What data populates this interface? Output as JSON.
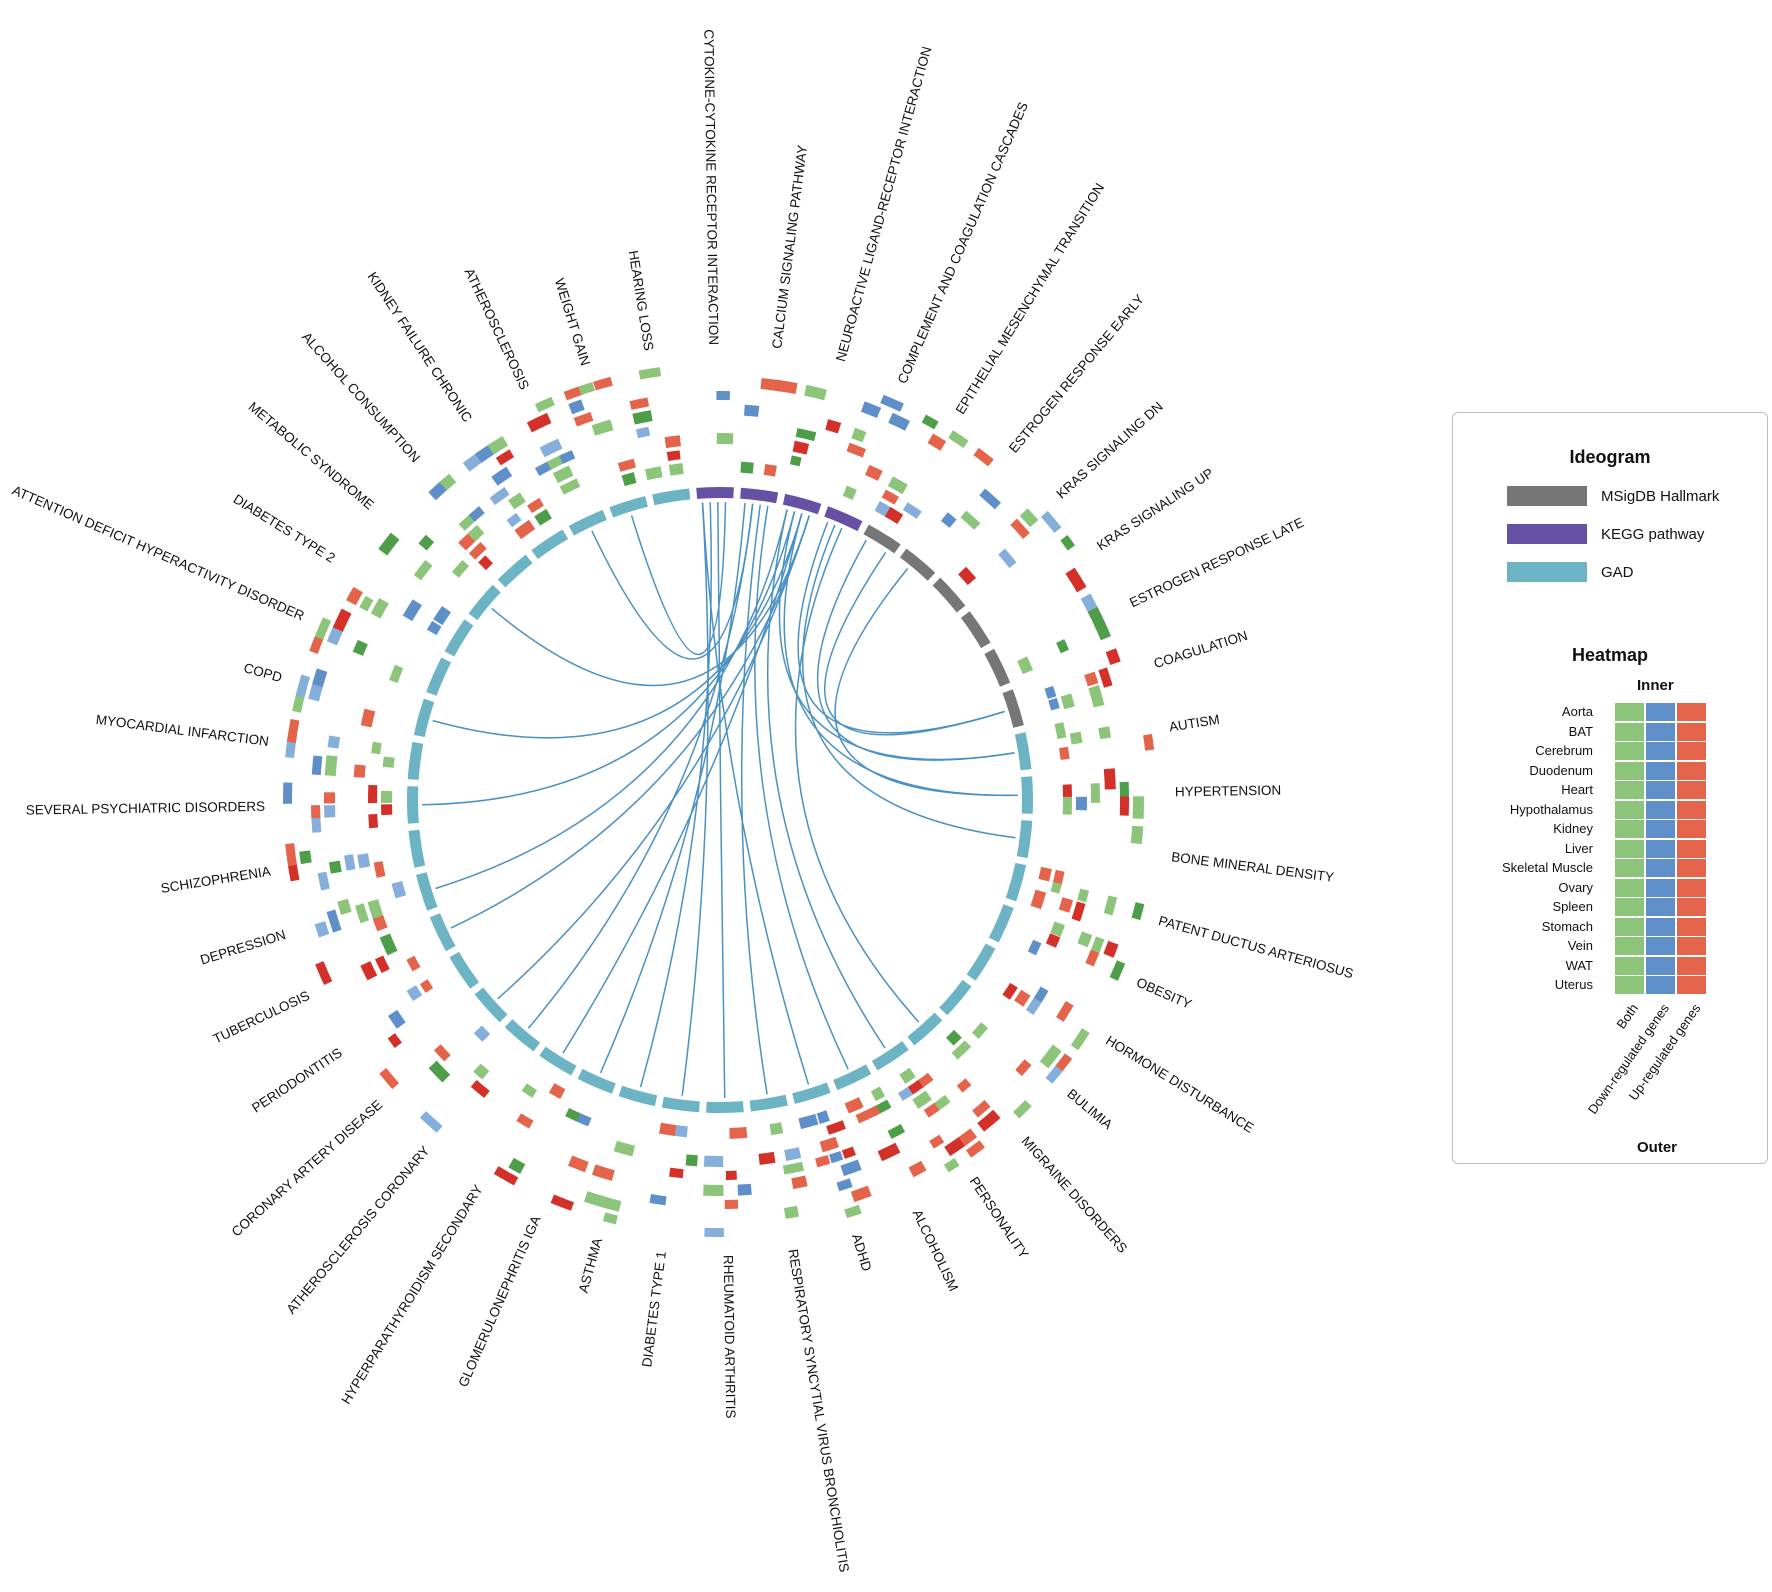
{
  "colors": {
    "msigdb": "#767676",
    "kegg": "#6650a4",
    "gad": "#6cb4c3",
    "link": "#4a90c2",
    "both": "#8cc47a",
    "both_dark": "#4e9d48",
    "down": "#5f8fc9",
    "down_light": "#86aedb",
    "up": "#e4634b",
    "up_dark": "#d4302a"
  },
  "segments": [
    {
      "label": "CYTOKINE-CYTOKINE RECEPTOR INTERACTION",
      "group": "kegg"
    },
    {
      "label": "CALCIUM SIGNALING PATHWAY",
      "group": "kegg"
    },
    {
      "label": "NEUROACTIVE LIGAND-RECEPTOR INTERACTION",
      "group": "kegg"
    },
    {
      "label": "COMPLEMENT AND COAGULATION CASCADES",
      "group": "kegg"
    },
    {
      "label": "EPITHELIAL MESENCHYMAL TRANSITION",
      "group": "msigdb"
    },
    {
      "label": "ESTROGEN RESPONSE EARLY",
      "group": "msigdb"
    },
    {
      "label": "KRAS SIGNALING DN",
      "group": "msigdb"
    },
    {
      "label": "KRAS SIGNALING UP",
      "group": "msigdb"
    },
    {
      "label": "ESTROGEN RESPONSE LATE",
      "group": "msigdb"
    },
    {
      "label": "COAGULATION",
      "group": "msigdb"
    },
    {
      "label": "AUTISM",
      "group": "gad"
    },
    {
      "label": "HYPERTENSION",
      "group": "gad"
    },
    {
      "label": "BONE MINERAL DENSITY",
      "group": "gad"
    },
    {
      "label": "PATENT DUCTUS ARTERIOSUS",
      "group": "gad"
    },
    {
      "label": "OBESITY",
      "group": "gad"
    },
    {
      "label": "HORMONE DISTURBANCE",
      "group": "gad"
    },
    {
      "label": "BULIMIA",
      "group": "gad"
    },
    {
      "label": "MIGRAINE DISORDERS",
      "group": "gad"
    },
    {
      "label": "PERSONALITY",
      "group": "gad"
    },
    {
      "label": "ALCOHOLISM",
      "group": "gad"
    },
    {
      "label": "ADHD",
      "group": "gad"
    },
    {
      "label": "RESPIRATORY SYNCYTIAL VIRUS BRONCHIOLITIS",
      "group": "gad"
    },
    {
      "label": "RHEUMATOID ARTHRITIS",
      "group": "gad"
    },
    {
      "label": "DIABETES TYPE 1",
      "group": "gad"
    },
    {
      "label": "ASTHMA",
      "group": "gad"
    },
    {
      "label": "GLOMERULONEPHRITIS IGA",
      "group": "gad"
    },
    {
      "label": "HYPERPARATHYROIDISM SECONDARY",
      "group": "gad"
    },
    {
      "label": "ATHEROSCLEROSIS CORONARY",
      "group": "gad"
    },
    {
      "label": "CORONARY ARTERY DISEASE",
      "group": "gad"
    },
    {
      "label": "PERIODONTITIS",
      "group": "gad"
    },
    {
      "label": "TUBERCULOSIS",
      "group": "gad"
    },
    {
      "label": "DEPRESSION",
      "group": "gad"
    },
    {
      "label": "SCHIZOPHRENIA",
      "group": "gad"
    },
    {
      "label": "SEVERAL PSYCHIATRIC DISORDERS",
      "group": "gad"
    },
    {
      "label": "MYOCARDIAL INFARCTION",
      "group": "gad"
    },
    {
      "label": "COPD",
      "group": "gad"
    },
    {
      "label": "ATTENTION DEFICIT HYPERACTIVITY DISORDER",
      "group": "gad"
    },
    {
      "label": "DIABETES TYPE 2",
      "group": "gad"
    },
    {
      "label": "METABOLIC SYNDROME",
      "group": "gad"
    },
    {
      "label": "ALCOHOL CONSUMPTION",
      "group": "gad"
    },
    {
      "label": "KIDNEY FAILURE CHRONIC",
      "group": "gad"
    },
    {
      "label": "ATHEROSCLEROSIS",
      "group": "gad"
    },
    {
      "label": "WEIGHT GAIN",
      "group": "gad"
    },
    {
      "label": "HEARING LOSS",
      "group": "gad"
    }
  ],
  "links": [
    [
      0,
      23
    ],
    [
      0,
      24
    ],
    [
      0,
      22
    ],
    [
      0,
      42
    ],
    [
      0,
      20
    ],
    [
      1,
      41
    ],
    [
      1,
      21
    ],
    [
      1,
      19
    ],
    [
      1,
      25
    ],
    [
      1,
      27
    ],
    [
      2,
      26
    ],
    [
      2,
      30
    ],
    [
      2,
      31
    ],
    [
      2,
      33
    ],
    [
      2,
      35
    ],
    [
      2,
      28
    ],
    [
      2,
      18
    ],
    [
      2,
      10
    ],
    [
      2,
      11
    ],
    [
      2,
      38
    ],
    [
      3,
      9
    ],
    [
      3,
      12
    ],
    [
      3,
      17
    ],
    [
      4,
      9
    ],
    [
      4,
      10
    ],
    [
      5,
      11
    ]
  ],
  "legend": {
    "ideogram_title": "Ideogram",
    "items": [
      {
        "label": "MSigDB Hallmark",
        "color": "#767676"
      },
      {
        "label": "KEGG pathway",
        "color": "#6650a4"
      },
      {
        "label": "GAD",
        "color": "#6cb4c3"
      }
    ],
    "heatmap_title": "Heatmap",
    "inner_label": "Inner",
    "outer_label": "Outer",
    "tissues": [
      "Aorta",
      "BAT",
      "Cerebrum",
      "Duodenum",
      "Heart",
      "Hypothalamus",
      "Kidney",
      "Liver",
      "Skeletal Muscle",
      "Ovary",
      "Spleen",
      "Stomach",
      "Vein",
      "WAT",
      "Uterus"
    ],
    "columns": [
      {
        "label": "Both",
        "color": "#8cc47a"
      },
      {
        "label": "Down-regulated genes",
        "color": "#5f8fc9"
      },
      {
        "label": "Up-regulated genes",
        "color": "#e4634b"
      }
    ]
  }
}
